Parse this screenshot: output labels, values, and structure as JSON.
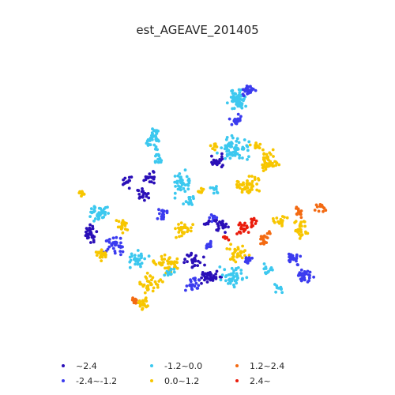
{
  "title": "est_AGEAVE_201405",
  "legend": {
    "items": [
      {
        "label": "~2.4",
        "color": "#2a0fb8"
      },
      {
        "label": "-2.4~-1.2",
        "color": "#3b3bef"
      },
      {
        "label": "-1.2~0.0",
        "color": "#3cc8ef"
      },
      {
        "label": "0.0~1.2",
        "color": "#f7c600"
      },
      {
        "label": "1.2~2.4",
        "color": "#f36a12"
      },
      {
        "label": "2.4~",
        "color": "#ea1c0c"
      }
    ]
  }
}
